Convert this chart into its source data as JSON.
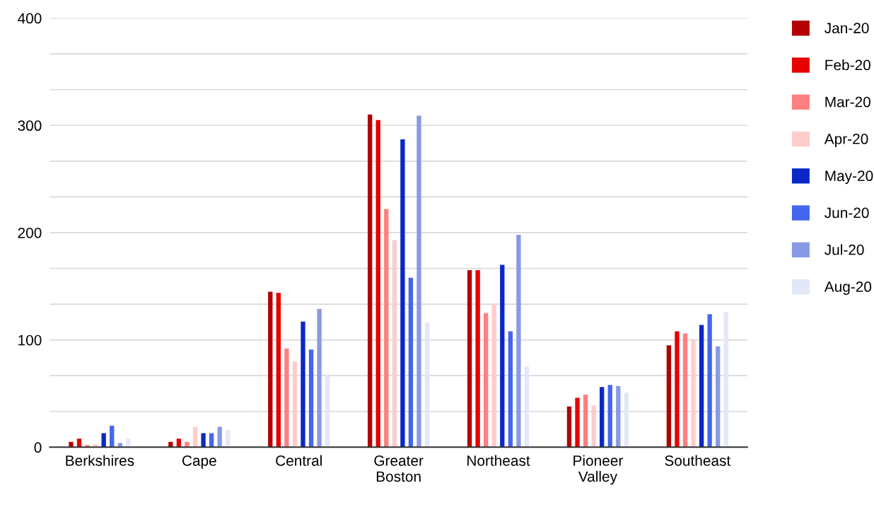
{
  "chart_data": {
    "type": "bar",
    "categories": [
      "Berkshires",
      "Cape",
      "Central",
      "Greater Boston",
      "Northeast",
      "Pioneer Valley",
      "Southeast"
    ],
    "series": [
      {
        "name": "Jan-20",
        "color": "#b30000",
        "values": [
          5,
          5,
          145,
          310,
          165,
          38,
          95
        ]
      },
      {
        "name": "Feb-20",
        "color": "#e60000",
        "values": [
          8,
          8,
          144,
          305,
          165,
          46,
          108
        ]
      },
      {
        "name": "Mar-20",
        "color": "#ff8080",
        "values": [
          2,
          5,
          92,
          222,
          125,
          49,
          106
        ]
      },
      {
        "name": "Apr-20",
        "color": "#ffcccc",
        "values": [
          3,
          19,
          80,
          193,
          133,
          39,
          100
        ]
      },
      {
        "name": "May-20",
        "color": "#0a28c8",
        "values": [
          13,
          13,
          117,
          287,
          170,
          56,
          114
        ]
      },
      {
        "name": "Jun-20",
        "color": "#4466ee",
        "values": [
          20,
          13,
          91,
          158,
          108,
          58,
          124
        ]
      },
      {
        "name": "Jul-20",
        "color": "#8899e6",
        "values": [
          4,
          19,
          129,
          309,
          198,
          57,
          94
        ]
      },
      {
        "name": "Aug-20",
        "color": "#e3e7f8",
        "values": [
          8,
          16,
          68,
          116,
          75,
          51,
          126
        ]
      }
    ],
    "ylim": [
      0,
      400
    ],
    "yticks": [
      0,
      {
        "value": 33.33,
        "label": null
      },
      {
        "value": 66.67,
        "label": null
      },
      100,
      {
        "value": 133.33,
        "label": null
      },
      {
        "value": 166.67,
        "label": null
      },
      200,
      {
        "value": 233.33,
        "label": null
      },
      {
        "value": 266.67,
        "label": null
      },
      300,
      {
        "value": 333.33,
        "label": null
      },
      {
        "value": 366.67,
        "label": null
      },
      400
    ],
    "grid": "y",
    "legend": "right"
  }
}
